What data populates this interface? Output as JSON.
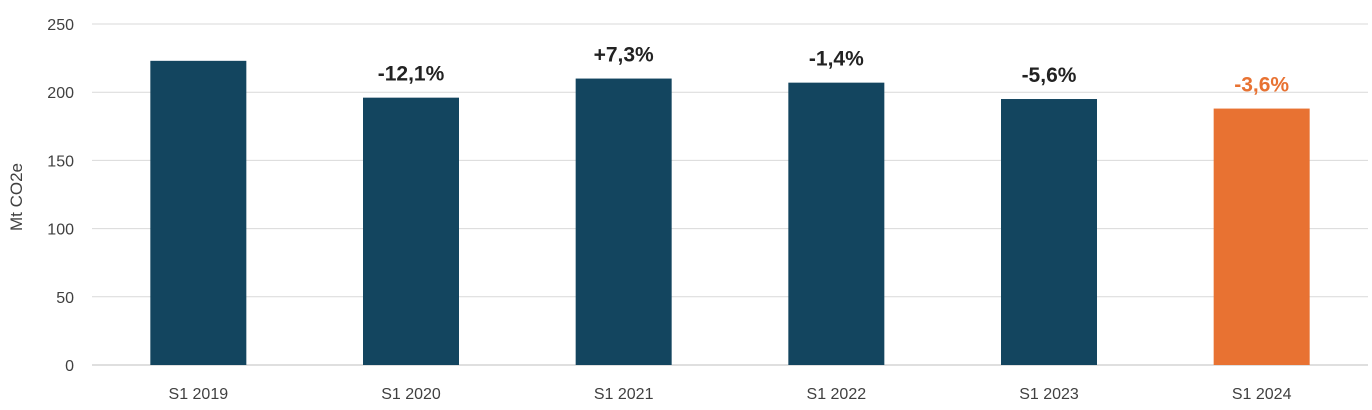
{
  "chart_data": {
    "type": "bar",
    "title": "",
    "xlabel": "",
    "ylabel": "Mt CO2e",
    "ylim": [
      0,
      250
    ],
    "yticks": [
      0,
      50,
      100,
      150,
      200,
      250
    ],
    "grid": true,
    "categories": [
      "S1 2019",
      "S1 2020",
      "S1 2021",
      "S1 2022",
      "S1 2023",
      "S1 2024"
    ],
    "values": [
      223,
      196,
      210,
      207,
      195,
      188
    ],
    "data_labels": [
      "",
      "-12,1%",
      "+7,3%",
      "-1,4%",
      "-5,6%",
      "-3,6%"
    ],
    "bar_colors": [
      "#13455f",
      "#13455f",
      "#13455f",
      "#13455f",
      "#13455f",
      "#e87232"
    ],
    "label_colors": [
      "#222222",
      "#222222",
      "#222222",
      "#222222",
      "#222222",
      "#e87232"
    ],
    "grid_color": "#d9d9d9",
    "axis_color": "#bfbfbf"
  }
}
